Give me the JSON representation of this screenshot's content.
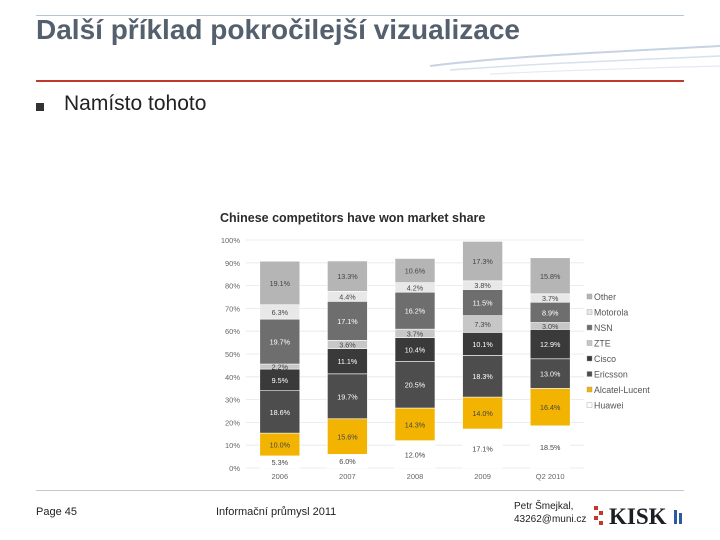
{
  "slide": {
    "title": "Další příklad pokročilejší vizualizace",
    "bullet": "Namísto tohoto"
  },
  "footer": {
    "page": "Page 45",
    "course": "Informační průmysl 2011",
    "author_line1": "Petr Šmejkal,",
    "author_line2": "43262@muni.cz",
    "logo": "KISK"
  },
  "colors": {
    "title": "#55606e",
    "accent_line": "#c0392b",
    "Other": "#b5b5b5",
    "Motorola": "#e8e8e8",
    "NSN": "#6e6e6e",
    "ZTE": "#c7c7c7",
    "Cisco": "#3a3a3a",
    "Ericsson": "#4d4d4d",
    "Alcatel-Lucent": "#f2b400",
    "Huawei": "#ffffff"
  },
  "chart_data": {
    "type": "bar",
    "stacked": true,
    "title": "Chinese competitors have won market share",
    "categories": [
      "2006",
      "2007",
      "2008",
      "2009",
      "Q2 2010"
    ],
    "ylim": [
      0,
      100
    ],
    "yticks": [
      "0%",
      "10%",
      "20%",
      "30%",
      "40%",
      "50%",
      "60%",
      "70%",
      "80%",
      "90%",
      "100%"
    ],
    "legend_position": "right",
    "series": [
      {
        "name": "Huawei",
        "values": [
          5.3,
          6.0,
          12.0,
          17.1,
          18.5
        ],
        "labels": [
          "5.3%",
          "6.0%",
          "12.0%",
          "17.1%",
          "18.5%"
        ]
      },
      {
        "name": "Alcatel-Lucent",
        "values": [
          10.0,
          15.6,
          14.3,
          14.0,
          16.4
        ],
        "labels": [
          "10.0%",
          "15.6%",
          "14.3%",
          "14.0%",
          "16.4%"
        ]
      },
      {
        "name": "Ericsson",
        "values": [
          18.6,
          19.7,
          20.5,
          18.3,
          13.0
        ],
        "labels": [
          "18.6%",
          "19.7%",
          "20.5%",
          "18.3%",
          "13.0%"
        ]
      },
      {
        "name": "Cisco",
        "values": [
          9.5,
          11.1,
          10.4,
          10.1,
          12.9
        ],
        "labels": [
          "9.5%",
          "11.1%",
          "10.4%",
          "10.1%",
          "12.9%"
        ]
      },
      {
        "name": "ZTE",
        "values": [
          2.2,
          3.6,
          3.7,
          7.3,
          3.0
        ],
        "labels": [
          "2.2%",
          "3.6%",
          "3.7%",
          "7.3%",
          "3.0%"
        ]
      },
      {
        "name": "NSN",
        "values": [
          19.7,
          17.1,
          16.2,
          11.5,
          8.9
        ],
        "labels": [
          "19.7%",
          "17.1%",
          "16.2%",
          "11.5%",
          "8.9%"
        ]
      },
      {
        "name": "Motorola",
        "values": [
          6.3,
          4.4,
          4.2,
          3.8,
          3.7
        ],
        "labels": [
          "6.3%",
          "4.4%",
          "4.2%",
          "3.8%",
          "3.7%"
        ]
      },
      {
        "name": "Other",
        "values": [
          19.1,
          13.3,
          10.6,
          17.3,
          15.8
        ],
        "labels": [
          "19.1%",
          "13.3%",
          "10.6%",
          "17.3%",
          "15.8%"
        ]
      }
    ],
    "legend_order": [
      "Other",
      "Motorola",
      "NSN",
      "ZTE",
      "Cisco",
      "Ericsson",
      "Alcatel-Lucent",
      "Huawei"
    ]
  }
}
